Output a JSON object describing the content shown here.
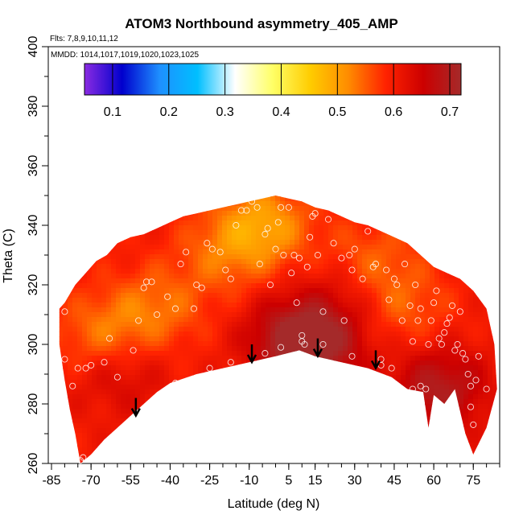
{
  "chart_data": {
    "type": "heatmap",
    "title": "ATOM3 Northbound asymmetry_405_AMP",
    "subtitle_flights": "Flts: 7,8,9,10,11,12",
    "subtitle_dates": "MMDD: 1014,1017,1019,1020,1023,1025",
    "xlabel": "Latitude (deg N)",
    "ylabel": "Theta (C)",
    "xlim": [
      -85,
      85
    ],
    "ylim": [
      260,
      400
    ],
    "x_tick_labels": [
      "-85",
      "-70",
      "-55",
      "-40",
      "-25",
      "-10",
      "5",
      "15",
      "30",
      "45",
      "60",
      "75"
    ],
    "x_tick_values": [
      -85,
      -70,
      -55,
      -40,
      -25,
      -10,
      5,
      15,
      30,
      45,
      60,
      75
    ],
    "y_tick_labels": [
      "260",
      "280",
      "300",
      "320",
      "340",
      "360",
      "380",
      "400"
    ],
    "y_tick_values": [
      260,
      280,
      300,
      320,
      340,
      360,
      380,
      400
    ],
    "colorbar": {
      "range": [
        0.05,
        0.72
      ],
      "tick_labels": [
        "0.1",
        "0.2",
        "0.3",
        "0.4",
        "0.5",
        "0.6",
        "0.7"
      ],
      "tick_values": [
        0.1,
        0.2,
        0.3,
        0.4,
        0.5,
        0.6,
        0.7
      ],
      "colors": [
        "#8a2be2",
        "#0000cd",
        "#1e90ff",
        "#00bfff",
        "#ffffff",
        "#ffff66",
        "#ffcc00",
        "#ff8c00",
        "#ff2200",
        "#cc0000",
        "#a52a2a"
      ]
    },
    "field_outline_top": [
      [
        -82,
        312
      ],
      [
        -80,
        314
      ],
      [
        -76,
        320
      ],
      [
        -72,
        324
      ],
      [
        -68,
        328
      ],
      [
        -64,
        330
      ],
      [
        -60,
        334
      ],
      [
        -55,
        336
      ],
      [
        -50,
        337
      ],
      [
        -45,
        339
      ],
      [
        -40,
        341
      ],
      [
        -35,
        343
      ],
      [
        -30,
        344
      ],
      [
        -25,
        345
      ],
      [
        -20,
        346
      ],
      [
        -15,
        347
      ],
      [
        -10,
        348
      ],
      [
        -5,
        349
      ],
      [
        0,
        350
      ],
      [
        5,
        349
      ],
      [
        10,
        348
      ],
      [
        15,
        346
      ],
      [
        20,
        345
      ],
      [
        25,
        343
      ],
      [
        30,
        341
      ],
      [
        35,
        340
      ],
      [
        40,
        338
      ],
      [
        45,
        336
      ],
      [
        50,
        334
      ],
      [
        55,
        330
      ],
      [
        60,
        326
      ],
      [
        65,
        324
      ],
      [
        70,
        322
      ],
      [
        75,
        318
      ],
      [
        80,
        312
      ],
      [
        83,
        300
      ],
      [
        84,
        285
      ]
    ],
    "field_outline_bottom": [
      [
        84,
        285
      ],
      [
        80,
        272
      ],
      [
        75,
        263
      ],
      [
        72,
        270
      ],
      [
        68,
        285
      ],
      [
        64,
        280
      ],
      [
        60,
        283
      ],
      [
        58,
        272
      ],
      [
        56,
        284
      ],
      [
        50,
        285
      ],
      [
        44,
        289
      ],
      [
        35,
        292
      ],
      [
        25,
        294
      ],
      [
        15,
        296
      ],
      [
        9,
        298
      ],
      [
        0,
        296
      ],
      [
        -10,
        294
      ],
      [
        -20,
        292
      ],
      [
        -30,
        290
      ],
      [
        -40,
        287
      ],
      [
        -45,
        284
      ],
      [
        -50,
        280
      ],
      [
        -55,
        276
      ],
      [
        -60,
        272
      ],
      [
        -65,
        268
      ],
      [
        -70,
        263
      ],
      [
        -74,
        260
      ],
      [
        -76,
        270
      ],
      [
        -78,
        278
      ],
      [
        -80,
        288
      ],
      [
        -82,
        300
      ]
    ],
    "base_value": 0.6,
    "hot_spots": [
      {
        "x": 7,
        "y": 302,
        "value": 0.7
      },
      {
        "x": 18,
        "y": 300,
        "value": 0.68
      },
      {
        "x": 62,
        "y": 285,
        "value": 0.7
      },
      {
        "x": 30,
        "y": 320,
        "value": 0.66
      },
      {
        "x": -60,
        "y": 292,
        "value": 0.66
      }
    ],
    "cool_spots": [
      {
        "x": -65,
        "y": 302,
        "value": 0.52
      },
      {
        "x": -45,
        "y": 312,
        "value": 0.54
      },
      {
        "x": -5,
        "y": 340,
        "value": 0.5
      },
      {
        "x": 35,
        "y": 326,
        "value": 0.52
      },
      {
        "x": -20,
        "y": 330,
        "value": 0.55
      },
      {
        "x": 48,
        "y": 312,
        "value": 0.55
      }
    ],
    "sample_points": [
      [
        -80,
        311
      ],
      [
        -80,
        295
      ],
      [
        -77,
        286
      ],
      [
        -75,
        292
      ],
      [
        -72,
        292
      ],
      [
        -70,
        293
      ],
      [
        -74,
        261
      ],
      [
        -73,
        262
      ],
      [
        -65,
        294
      ],
      [
        -63,
        302
      ],
      [
        -60,
        289
      ],
      [
        -57,
        270
      ],
      [
        -54,
        298
      ],
      [
        -52,
        308
      ],
      [
        -50,
        319
      ],
      [
        -49,
        321
      ],
      [
        -47,
        321
      ],
      [
        -45,
        310
      ],
      [
        -41,
        316
      ],
      [
        -38,
        312
      ],
      [
        -36,
        327
      ],
      [
        -34,
        331
      ],
      [
        -31,
        312
      ],
      [
        -30,
        320
      ],
      [
        -28,
        319
      ],
      [
        -26,
        334
      ],
      [
        -24,
        332
      ],
      [
        -21,
        331
      ],
      [
        -19,
        325
      ],
      [
        -17,
        322
      ],
      [
        -15,
        340
      ],
      [
        -13,
        345
      ],
      [
        -11,
        345
      ],
      [
        -9,
        348
      ],
      [
        -7,
        346
      ],
      [
        -6,
        327
      ],
      [
        -4,
        337
      ],
      [
        -3,
        339
      ],
      [
        -2,
        320
      ],
      [
        0,
        332
      ],
      [
        1,
        341
      ],
      [
        2,
        346
      ],
      [
        3,
        330
      ],
      [
        5,
        346
      ],
      [
        6,
        324
      ],
      [
        7,
        330
      ],
      [
        8,
        314
      ],
      [
        9,
        329
      ],
      [
        10,
        303
      ],
      [
        10,
        301
      ],
      [
        11,
        300
      ],
      [
        12,
        326
      ],
      [
        13,
        336
      ],
      [
        14,
        343
      ],
      [
        15,
        344
      ],
      [
        16,
        330
      ],
      [
        18,
        311
      ],
      [
        18,
        300
      ],
      [
        20,
        342
      ],
      [
        22,
        334
      ],
      [
        25,
        329
      ],
      [
        26,
        308
      ],
      [
        28,
        330
      ],
      [
        29,
        325
      ],
      [
        30,
        332
      ],
      [
        31,
        343
      ],
      [
        33,
        322
      ],
      [
        35,
        338
      ],
      [
        37,
        326
      ],
      [
        38,
        327
      ],
      [
        40,
        295
      ],
      [
        42,
        325
      ],
      [
        43,
        315
      ],
      [
        45,
        322
      ],
      [
        46,
        320
      ],
      [
        48,
        308
      ],
      [
        49,
        327
      ],
      [
        51,
        313
      ],
      [
        52,
        301
      ],
      [
        53,
        320
      ],
      [
        54,
        308
      ],
      [
        55,
        312
      ],
      [
        56,
        336
      ],
      [
        57,
        332
      ],
      [
        58,
        300
      ],
      [
        59,
        308
      ],
      [
        60,
        314
      ],
      [
        61,
        318
      ],
      [
        62,
        302
      ],
      [
        63,
        300
      ],
      [
        64,
        304
      ],
      [
        65,
        307
      ],
      [
        66,
        309
      ],
      [
        67,
        313
      ],
      [
        68,
        298
      ],
      [
        69,
        300
      ],
      [
        70,
        311
      ],
      [
        71,
        297
      ],
      [
        72,
        295
      ],
      [
        73,
        290
      ],
      [
        74,
        286
      ],
      [
        74,
        279
      ],
      [
        75,
        273
      ],
      [
        76,
        288
      ],
      [
        77,
        296
      ],
      [
        78,
        318
      ],
      [
        80,
        285
      ],
      [
        -38,
        287
      ],
      [
        -25,
        292
      ],
      [
        -17,
        294
      ],
      [
        -4,
        297
      ],
      [
        2,
        299
      ],
      [
        29,
        296
      ],
      [
        40,
        293
      ],
      [
        44,
        292
      ],
      [
        52,
        285
      ],
      [
        55,
        286
      ],
      [
        66,
        279
      ],
      [
        65,
        279
      ],
      [
        57,
        285
      ]
    ],
    "arrows": [
      [
        -53,
        282
      ],
      [
        -9,
        300
      ],
      [
        16,
        302
      ],
      [
        38,
        298
      ]
    ]
  }
}
